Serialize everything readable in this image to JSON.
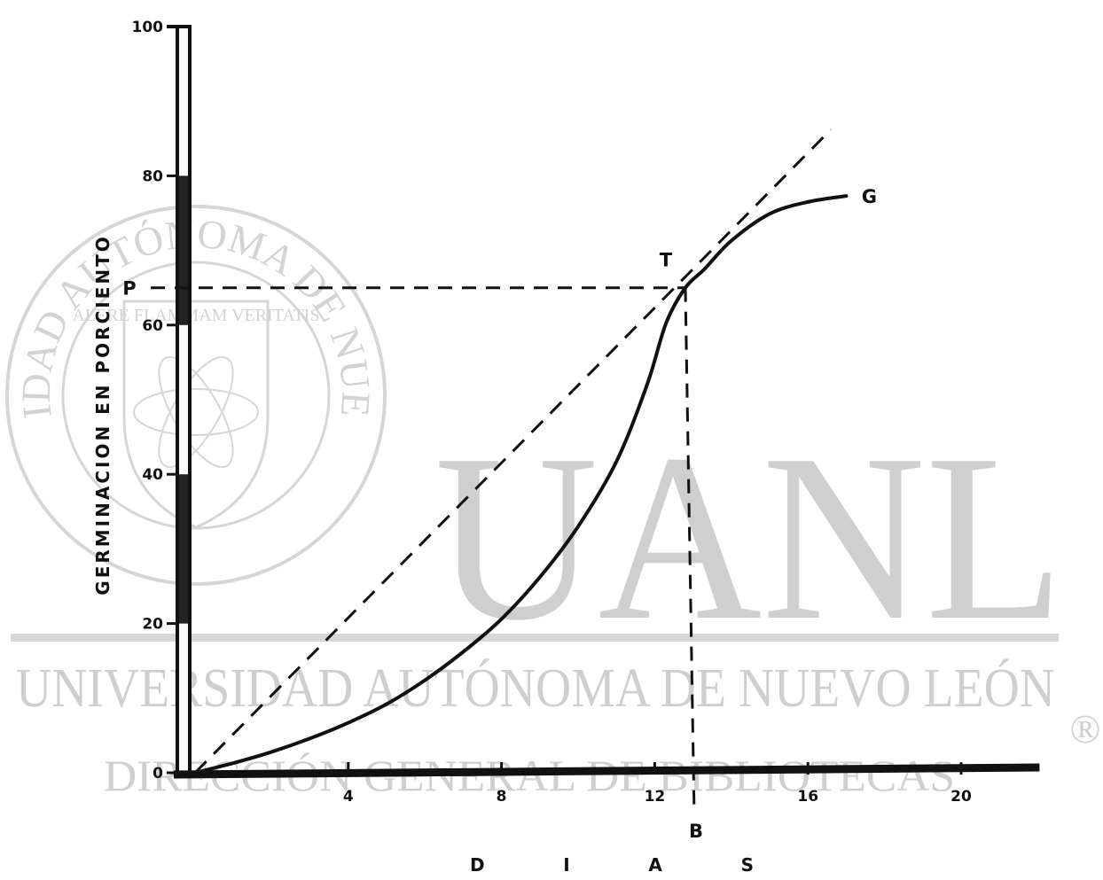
{
  "watermark": {
    "big": "UANL",
    "university": "UNIVERSIDAD AUTÓNOMA DE NUEVO LEÓN",
    "library": "DIRECCIÓN GENERAL DE BIBLIOTECAS",
    "registered": "®",
    "seal_ring": "UNIVERSIDAD AUTÓNOMA DE NUEVO LEÓN",
    "seal_motto": "ALERE FLAMMAM VERITATIS"
  },
  "chart_data": {
    "type": "line",
    "title": "",
    "xlabel": "D I A S",
    "ylabel": "GERMINACION EN PORCIENTO",
    "xlim": [
      0,
      22
    ],
    "ylim": [
      0,
      100
    ],
    "x_ticks": [
      4,
      8,
      12,
      16,
      20
    ],
    "y_ticks": [
      0,
      20,
      40,
      60,
      80,
      100
    ],
    "grid": false,
    "series": [
      {
        "name": "G",
        "style": "solid",
        "x": [
          0,
          1,
          2,
          3,
          4,
          5,
          6,
          7,
          8,
          9,
          10,
          11,
          11.8,
          12.3,
          12.8,
          13.3,
          14,
          15,
          16,
          17
        ],
        "y": [
          0,
          1.3,
          2.8,
          4.6,
          6.7,
          9.2,
          12.4,
          16.2,
          20.6,
          26.2,
          33,
          41.7,
          52,
          60.3,
          65,
          67.5,
          71.3,
          74.9,
          76.5,
          77.3
        ]
      },
      {
        "name": "",
        "style": "dashed",
        "x": [
          0,
          16.6
        ],
        "y": [
          0,
          86.2
        ]
      }
    ],
    "annotations": {
      "tangent_point": {
        "label": "T",
        "x": 12.8,
        "y": 65
      },
      "p_label": "P",
      "b_label": "B",
      "curve_label": "G"
    }
  }
}
